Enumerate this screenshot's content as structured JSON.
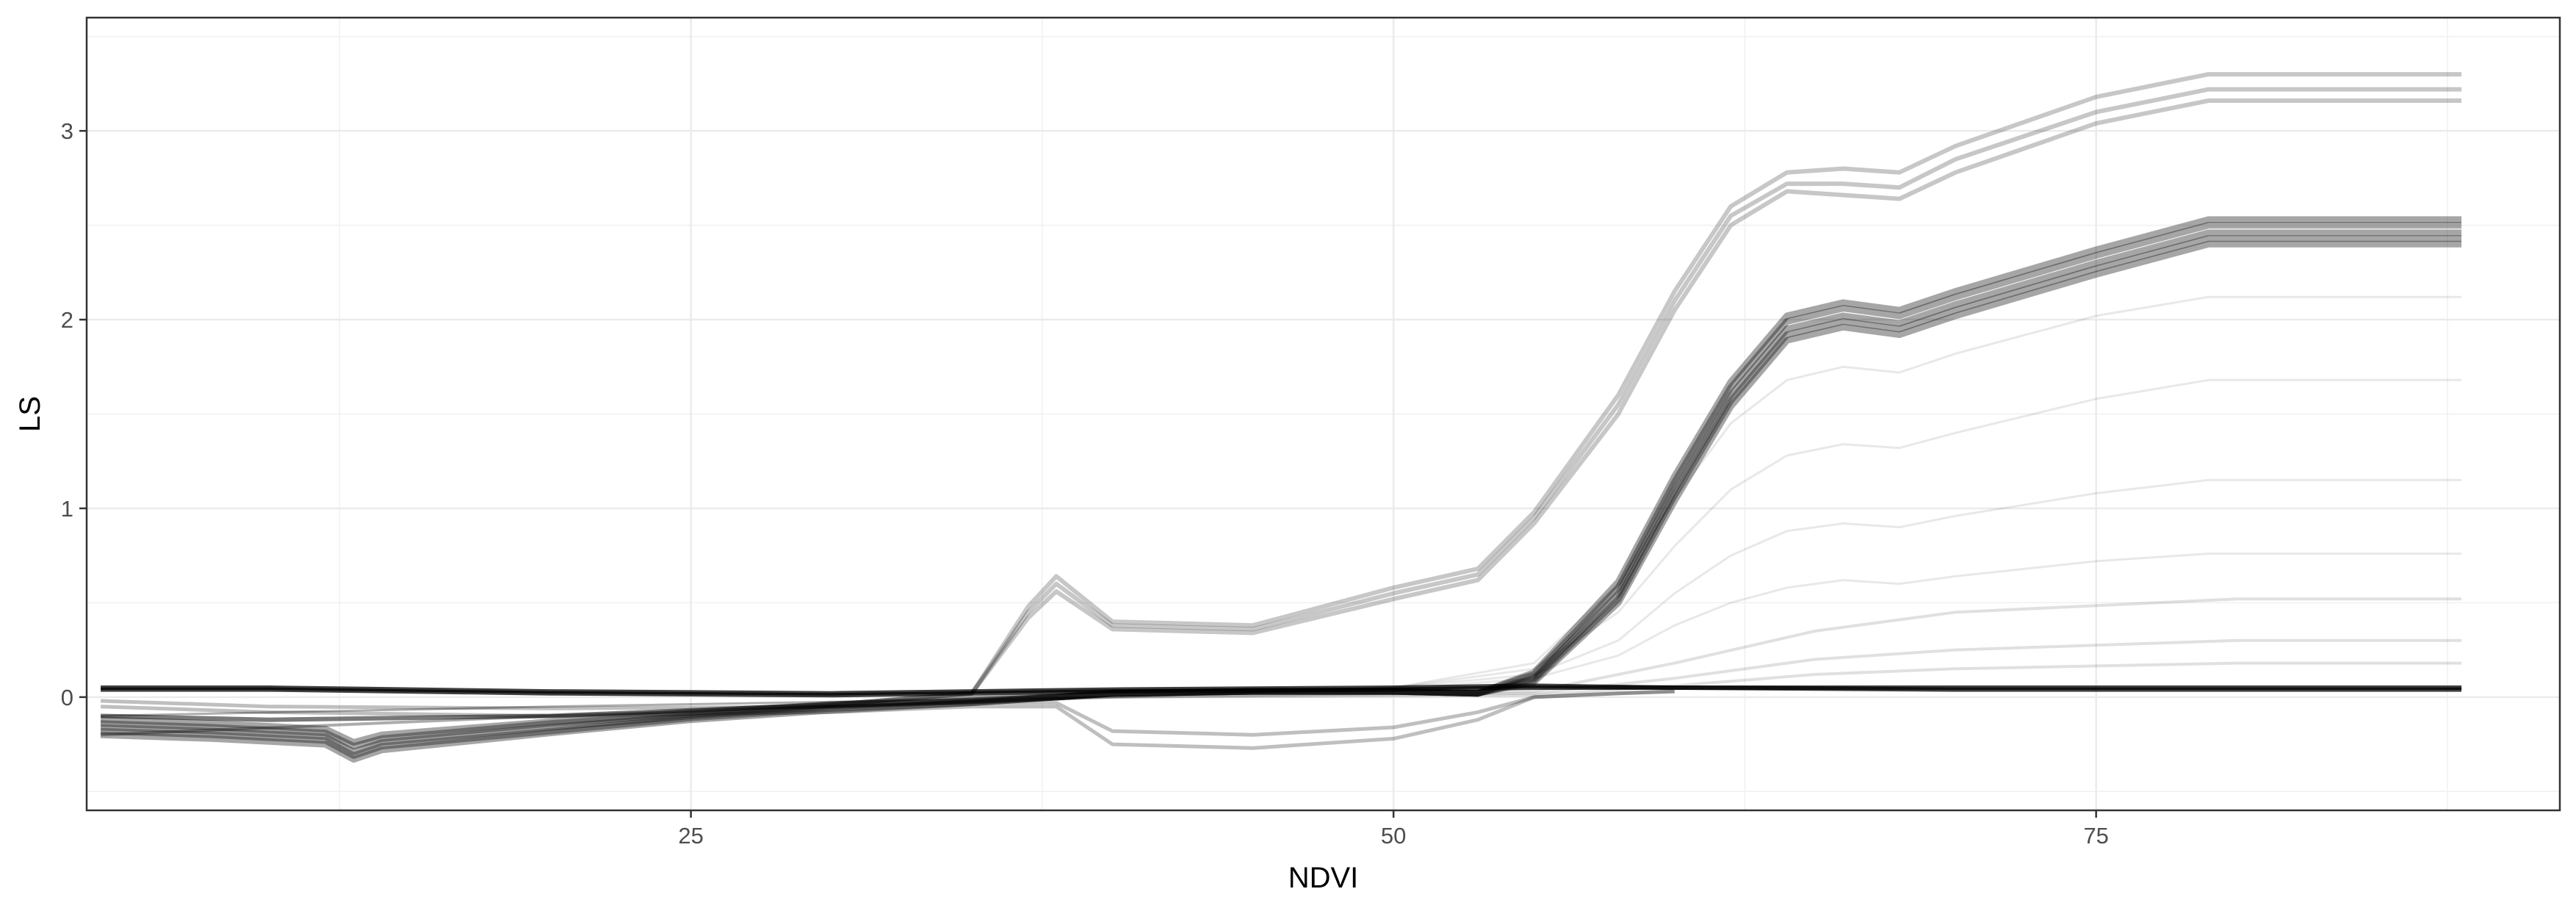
{
  "chart_data": {
    "type": "line",
    "title": "",
    "xlabel": "NDVI",
    "ylabel": "LS",
    "xlim": [
      3.5,
      91.5
    ],
    "ylim": [
      -0.6,
      3.6
    ],
    "x_ticks": [
      25,
      50,
      75
    ],
    "x_tick_labels": [
      "25",
      "50",
      "75"
    ],
    "y_ticks": [
      0,
      1,
      2,
      3
    ],
    "y_tick_labels": [
      "0",
      "1",
      "2",
      "3"
    ],
    "x_minor_grid": [
      12.5,
      37.5,
      62.5,
      87.5
    ],
    "y_minor_grid": [
      -0.5,
      0.5,
      1.5,
      2.5,
      3.5
    ],
    "grid": true,
    "theme": "bw",
    "series": [
      {
        "role": "dense-core",
        "x": [
          4,
          8,
          12,
          13,
          14,
          20,
          25,
          30,
          35,
          38,
          40,
          45,
          50,
          53,
          55,
          58,
          60,
          62,
          64,
          66,
          68,
          70,
          75,
          79,
          88
        ],
        "y": [
          -0.16,
          -0.18,
          -0.21,
          -0.29,
          -0.24,
          -0.16,
          -0.1,
          -0.05,
          -0.02,
          0.0,
          0.02,
          0.03,
          0.03,
          0.02,
          0.1,
          0.55,
          1.1,
          1.6,
          1.95,
          2.02,
          1.98,
          2.08,
          2.3,
          2.46,
          2.46
        ]
      },
      {
        "role": "dense-core",
        "x": [
          4,
          8,
          12,
          13,
          14,
          20,
          25,
          30,
          35,
          38,
          40,
          45,
          50,
          53,
          55,
          58,
          60,
          62,
          64,
          66,
          68,
          70,
          75,
          79,
          88
        ],
        "y": [
          -0.14,
          -0.16,
          -0.19,
          -0.26,
          -0.22,
          -0.14,
          -0.09,
          -0.04,
          -0.02,
          0.0,
          0.02,
          0.03,
          0.03,
          0.02,
          0.12,
          0.58,
          1.14,
          1.64,
          1.99,
          2.06,
          2.02,
          2.12,
          2.34,
          2.5,
          2.5
        ]
      },
      {
        "role": "dense-core",
        "x": [
          4,
          8,
          12,
          13,
          14,
          20,
          25,
          30,
          35,
          38,
          40,
          45,
          50,
          53,
          55,
          58,
          60,
          62,
          64,
          66,
          68,
          70,
          75,
          79,
          88
        ],
        "y": [
          -0.18,
          -0.2,
          -0.23,
          -0.31,
          -0.26,
          -0.18,
          -0.11,
          -0.06,
          -0.03,
          0.0,
          0.02,
          0.03,
          0.03,
          0.02,
          0.09,
          0.52,
          1.07,
          1.57,
          1.92,
          1.99,
          1.95,
          2.05,
          2.27,
          2.43,
          2.43
        ]
      },
      {
        "role": "dense-core",
        "x": [
          4,
          8,
          12,
          13,
          14,
          20,
          25,
          30,
          35,
          38,
          40,
          45,
          50,
          53,
          55,
          58,
          60,
          62,
          64,
          66,
          68,
          70,
          75,
          79,
          88
        ],
        "y": [
          -0.12,
          -0.14,
          -0.17,
          -0.24,
          -0.2,
          -0.13,
          -0.08,
          -0.04,
          -0.01,
          0.0,
          0.02,
          0.03,
          0.03,
          0.02,
          0.13,
          0.61,
          1.17,
          1.67,
          2.02,
          2.09,
          2.05,
          2.15,
          2.37,
          2.53,
          2.53
        ]
      },
      {
        "role": "dense-core",
        "x": [
          4,
          8,
          12,
          13,
          14,
          20,
          25,
          30,
          35,
          38,
          40,
          45,
          50,
          53,
          55,
          58,
          60,
          62,
          64,
          66,
          68,
          70,
          75,
          79,
          88
        ],
        "y": [
          -0.2,
          -0.22,
          -0.25,
          -0.33,
          -0.28,
          -0.19,
          -0.12,
          -0.07,
          -0.03,
          0.0,
          0.02,
          0.03,
          0.03,
          0.02,
          0.08,
          0.5,
          1.04,
          1.54,
          1.89,
          1.96,
          1.92,
          2.02,
          2.24,
          2.4,
          2.4
        ]
      },
      {
        "role": "upper-band",
        "x": [
          4,
          10,
          20,
          30,
          35,
          37,
          38,
          40,
          45,
          50,
          53,
          55,
          58,
          60,
          62,
          64,
          66,
          68,
          70,
          75,
          79,
          88
        ],
        "y": [
          -0.1,
          -0.12,
          -0.1,
          -0.04,
          0.02,
          0.45,
          0.6,
          0.38,
          0.36,
          0.55,
          0.65,
          0.95,
          1.55,
          2.1,
          2.55,
          2.72,
          2.72,
          2.7,
          2.85,
          3.1,
          3.22,
          3.22
        ]
      },
      {
        "role": "upper-band",
        "x": [
          4,
          10,
          20,
          30,
          35,
          37,
          38,
          40,
          45,
          50,
          53,
          55,
          58,
          60,
          62,
          64,
          66,
          68,
          70,
          75,
          79,
          88
        ],
        "y": [
          -0.1,
          -0.12,
          -0.1,
          -0.04,
          0.02,
          0.48,
          0.64,
          0.4,
          0.38,
          0.58,
          0.68,
          0.98,
          1.6,
          2.15,
          2.6,
          2.78,
          2.8,
          2.78,
          2.92,
          3.18,
          3.3,
          3.3
        ]
      },
      {
        "role": "upper-band",
        "x": [
          4,
          10,
          20,
          30,
          35,
          37,
          38,
          40,
          45,
          50,
          53,
          55,
          58,
          60,
          62,
          64,
          66,
          68,
          70,
          75,
          79,
          88
        ],
        "y": [
          -0.1,
          -0.12,
          -0.1,
          -0.04,
          0.02,
          0.42,
          0.56,
          0.36,
          0.34,
          0.52,
          0.62,
          0.92,
          1.5,
          2.05,
          2.5,
          2.68,
          2.66,
          2.64,
          2.78,
          3.04,
          3.16,
          3.16
        ]
      },
      {
        "role": "flat-line",
        "x": [
          4,
          10,
          20,
          30,
          40,
          50,
          55,
          60,
          70,
          80,
          88
        ],
        "y": [
          0.04,
          0.04,
          0.02,
          0.01,
          0.03,
          0.04,
          0.05,
          0.05,
          0.04,
          0.04,
          0.04
        ]
      },
      {
        "role": "flat-line",
        "x": [
          4,
          10,
          20,
          30,
          40,
          50,
          55,
          60,
          70,
          80,
          88
        ],
        "y": [
          0.05,
          0.05,
          0.03,
          0.02,
          0.04,
          0.05,
          0.06,
          0.05,
          0.05,
          0.05,
          0.05
        ]
      },
      {
        "role": "dip-line",
        "x": [
          4,
          10,
          20,
          30,
          35,
          38,
          40,
          45,
          50,
          53,
          55,
          58,
          60
        ],
        "y": [
          -0.05,
          -0.08,
          -0.1,
          -0.08,
          -0.05,
          -0.05,
          -0.25,
          -0.27,
          -0.22,
          -0.12,
          0.0,
          0.02,
          0.03
        ]
      },
      {
        "role": "dip-line",
        "x": [
          4,
          10,
          20,
          30,
          35,
          38,
          40,
          45,
          50,
          53,
          55,
          58,
          60
        ],
        "y": [
          -0.02,
          -0.05,
          -0.06,
          -0.05,
          -0.03,
          -0.03,
          -0.18,
          -0.2,
          -0.16,
          -0.08,
          0.0,
          0.02,
          0.03
        ]
      },
      {
        "role": "low-tail",
        "x": [
          4,
          20,
          40,
          55,
          60,
          65,
          70,
          80,
          88
        ],
        "y": [
          -0.2,
          -0.1,
          0.0,
          0.02,
          0.1,
          0.2,
          0.25,
          0.3,
          0.3
        ]
      },
      {
        "role": "low-tail",
        "x": [
          4,
          20,
          40,
          55,
          60,
          65,
          70,
          80,
          88
        ],
        "y": [
          -0.2,
          -0.1,
          0.0,
          0.03,
          0.18,
          0.35,
          0.45,
          0.52,
          0.52
        ]
      },
      {
        "role": "low-tail",
        "x": [
          4,
          20,
          40,
          55,
          60,
          65,
          70,
          80,
          88
        ],
        "y": [
          -0.2,
          -0.1,
          0.0,
          0.01,
          0.06,
          0.12,
          0.15,
          0.18,
          0.18
        ]
      },
      {
        "role": "mid-fan",
        "x": [
          4,
          20,
          40,
          50,
          55,
          58,
          60,
          62,
          64,
          66,
          68,
          70,
          75,
          79,
          88
        ],
        "y": [
          -0.1,
          -0.05,
          0.0,
          0.05,
          0.15,
          0.45,
          0.8,
          1.1,
          1.28,
          1.34,
          1.32,
          1.4,
          1.58,
          1.68,
          1.68
        ]
      },
      {
        "role": "mid-fan",
        "x": [
          4,
          20,
          40,
          50,
          55,
          58,
          60,
          62,
          64,
          66,
          68,
          70,
          75,
          79,
          88
        ],
        "y": [
          -0.1,
          -0.05,
          0.0,
          0.05,
          0.12,
          0.3,
          0.55,
          0.75,
          0.88,
          0.92,
          0.9,
          0.96,
          1.08,
          1.15,
          1.15
        ]
      },
      {
        "role": "mid-fan",
        "x": [
          4,
          20,
          40,
          50,
          55,
          58,
          60,
          62,
          64,
          66,
          68,
          70,
          75,
          79,
          88
        ],
        "y": [
          -0.1,
          -0.05,
          0.0,
          0.05,
          0.18,
          0.6,
          1.05,
          1.45,
          1.68,
          1.75,
          1.72,
          1.82,
          2.02,
          2.12,
          2.12
        ]
      },
      {
        "role": "mid-fan",
        "x": [
          4,
          20,
          40,
          50,
          55,
          58,
          60,
          62,
          64,
          66,
          68,
          70,
          75,
          79,
          88
        ],
        "y": [
          -0.1,
          -0.05,
          0.0,
          0.04,
          0.1,
          0.22,
          0.38,
          0.5,
          0.58,
          0.62,
          0.6,
          0.64,
          0.72,
          0.76,
          0.76
        ]
      }
    ]
  }
}
